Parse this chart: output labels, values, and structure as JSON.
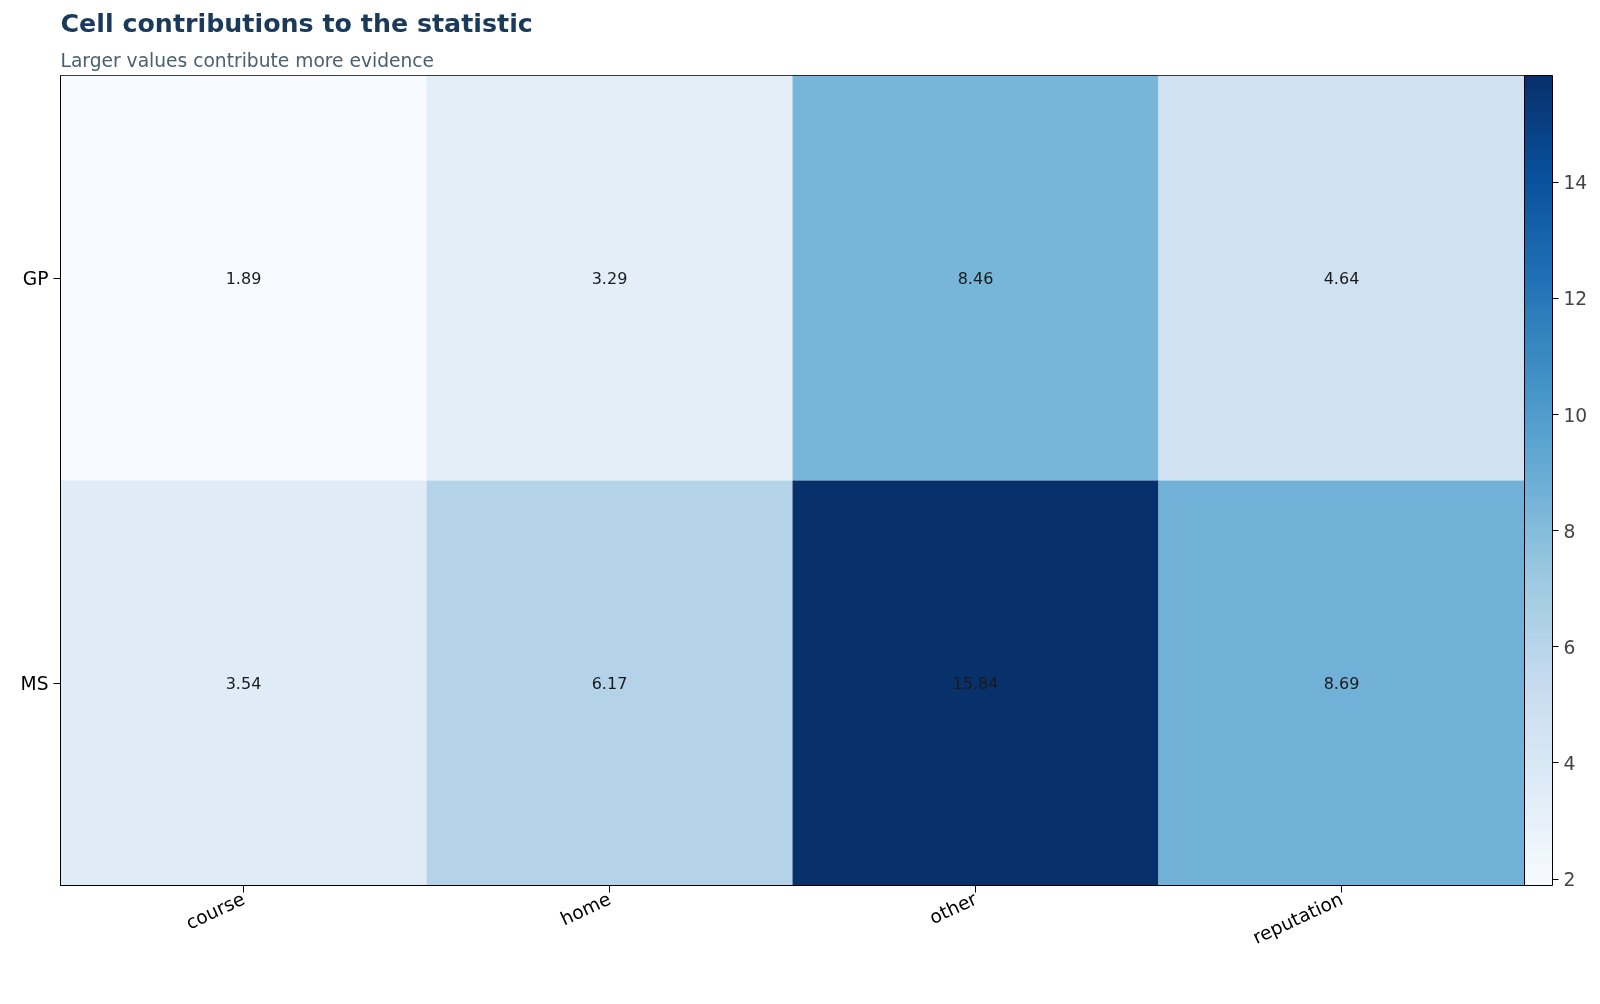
{
  "chart_data": {
    "type": "heatmap",
    "title": "Cell contributions to the statistic",
    "subtitle": "Larger values contribute more evidence",
    "categories": [
      "course",
      "home",
      "other",
      "reputation"
    ],
    "y_categories": [
      "GP",
      "MS"
    ],
    "cells": [
      [
        1.89,
        3.29,
        8.46,
        4.64
      ],
      [
        3.54,
        6.17,
        15.84,
        8.69
      ]
    ],
    "data_labels": true,
    "clim": [
      1.89,
      15.84
    ],
    "cticks": [
      2,
      4,
      6,
      8,
      10,
      12,
      14
    ],
    "grid": false
  }
}
